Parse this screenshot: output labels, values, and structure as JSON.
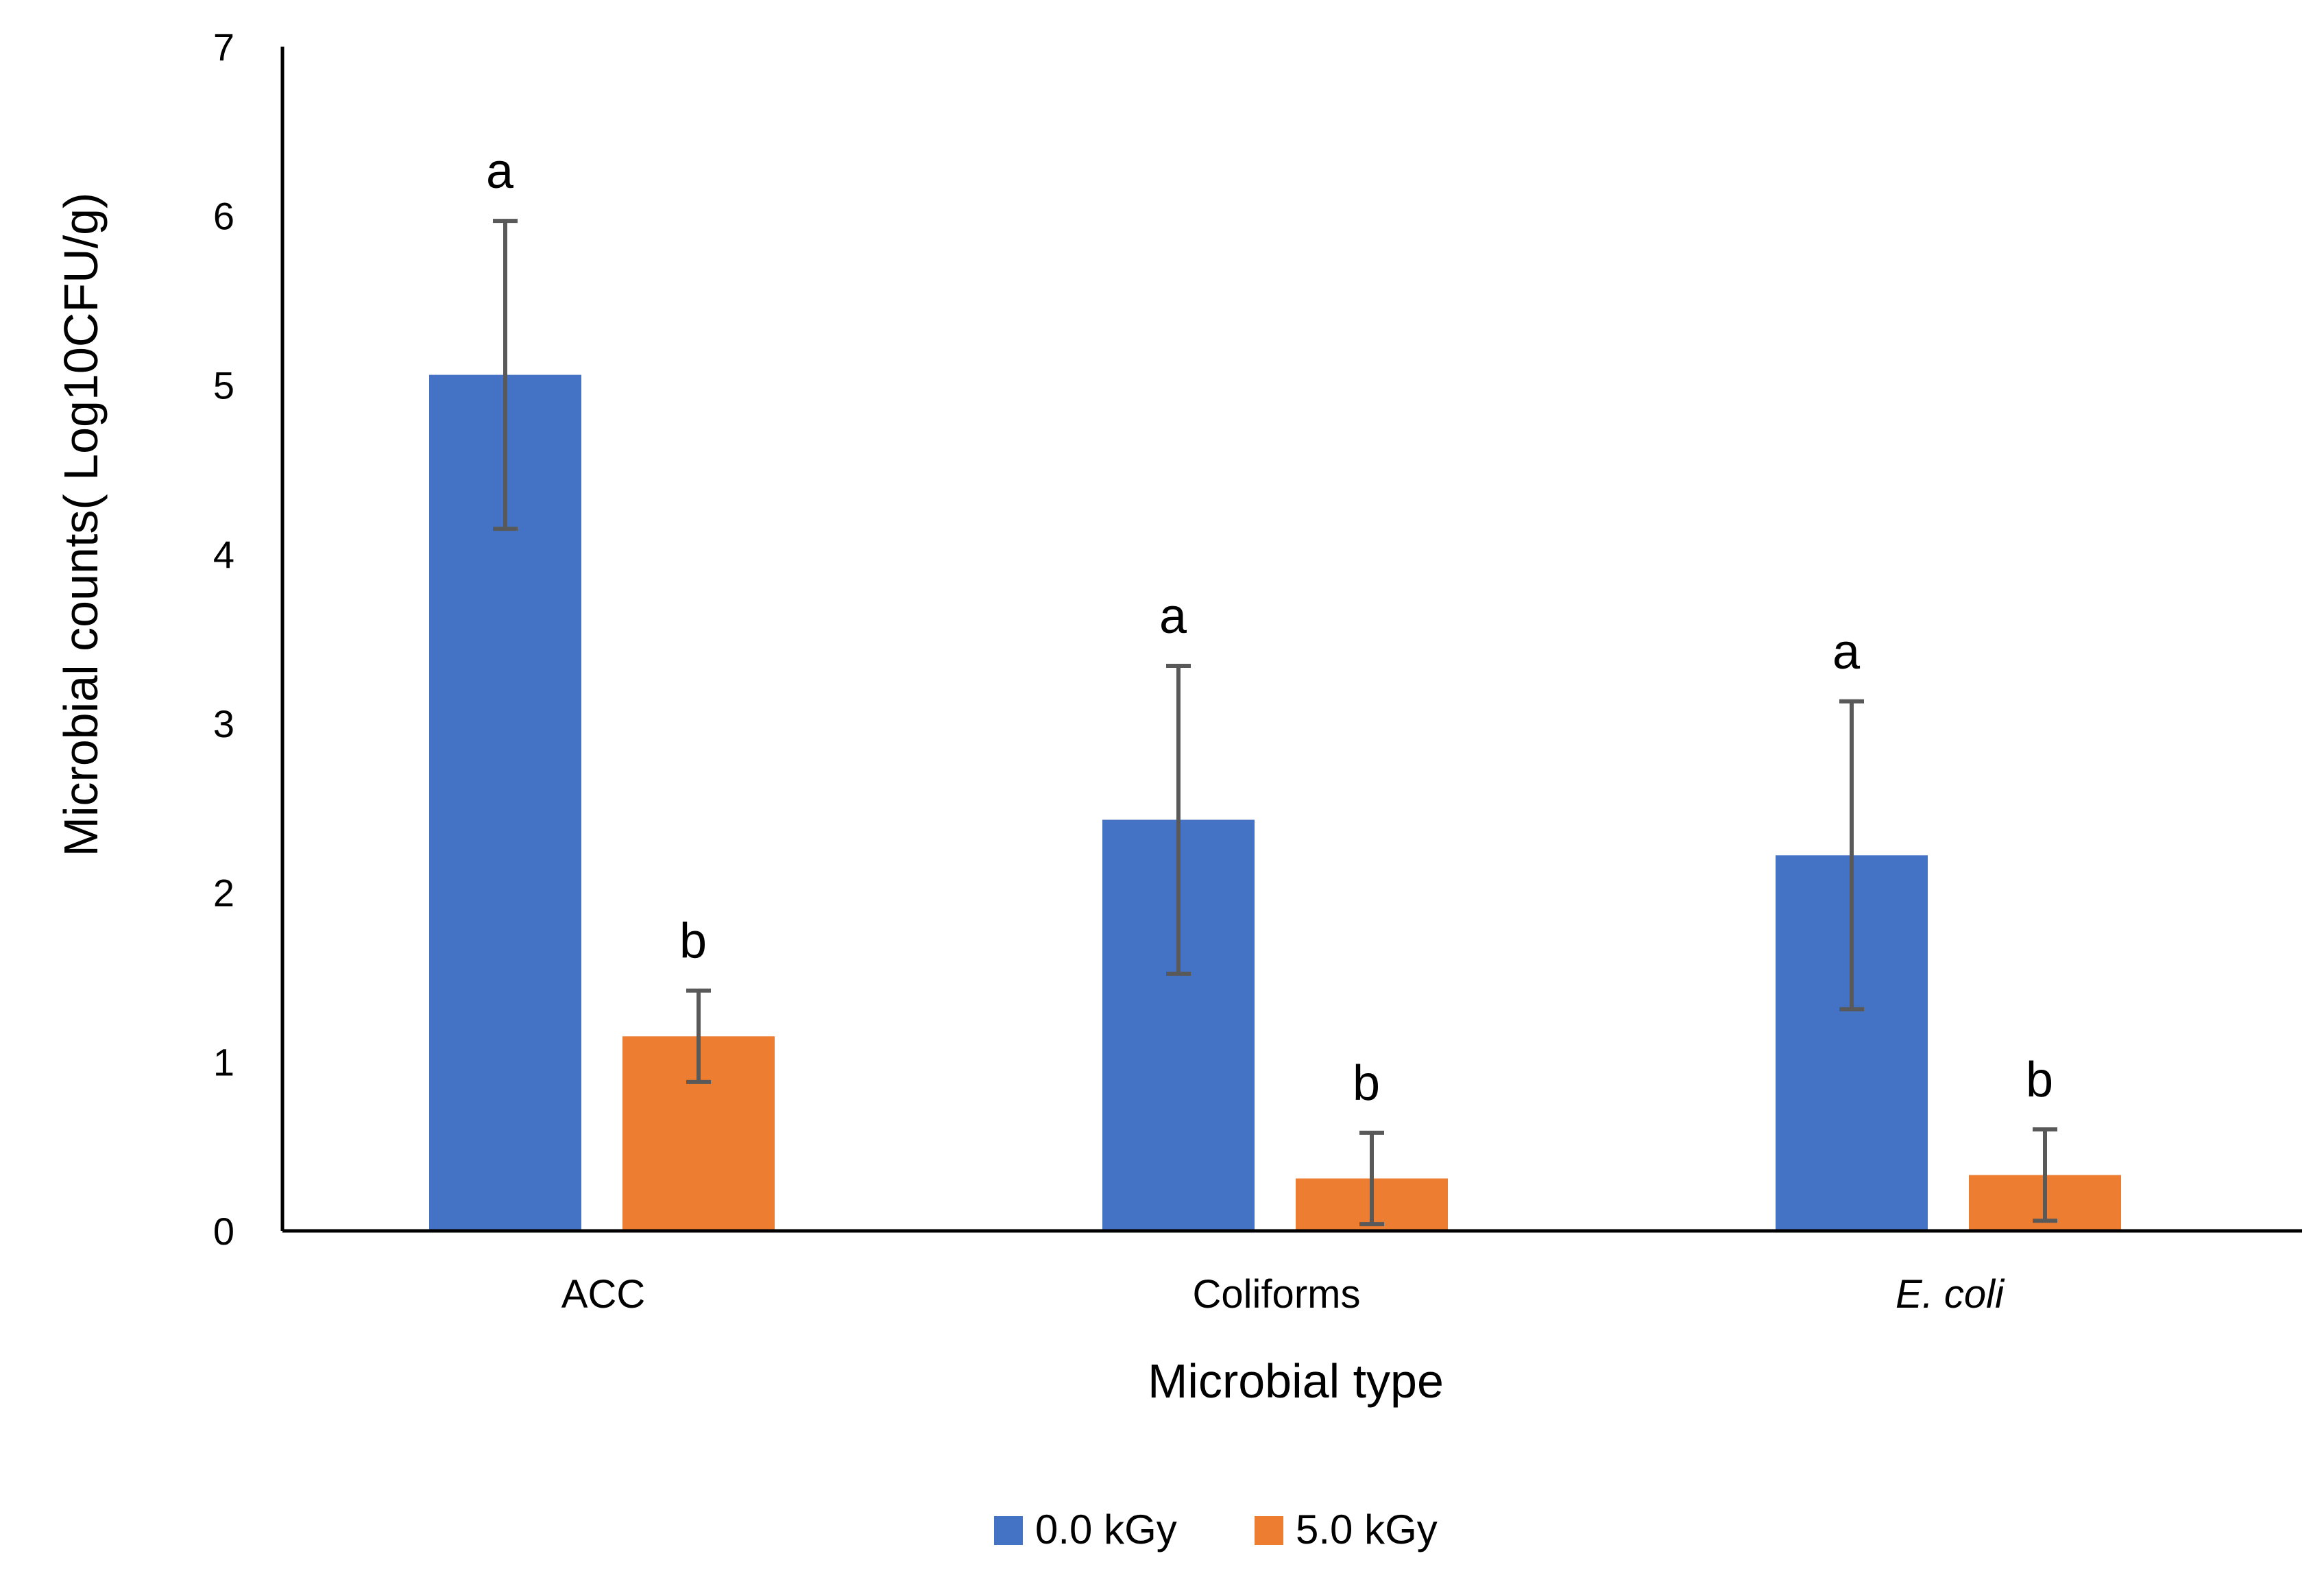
{
  "chart_data": {
    "type": "bar",
    "title": "",
    "xlabel": "Microbial type",
    "ylabel": "Microbial counts( Log10CFU/g)",
    "ylim": [
      0,
      7
    ],
    "yticks": [
      0,
      1,
      2,
      3,
      4,
      5,
      6,
      7
    ],
    "grid": false,
    "legend_position": "bottom",
    "categories": [
      "ACC",
      "Coliforms",
      "E. coli"
    ],
    "series": [
      {
        "name": "0.0 kGy",
        "color": "#4472C4",
        "values": [
          5.06,
          2.43,
          2.22
        ],
        "errors": [
          0.91,
          0.91,
          0.91
        ],
        "labels": [
          "a",
          "a",
          "a"
        ]
      },
      {
        "name": "5.0 kGy",
        "color": "#ED7D31",
        "values": [
          1.15,
          0.31,
          0.33
        ],
        "errors": [
          0.27,
          0.27,
          0.27
        ],
        "labels": [
          "b",
          "b",
          "b"
        ]
      }
    ],
    "error_bar_color": "#595959"
  }
}
